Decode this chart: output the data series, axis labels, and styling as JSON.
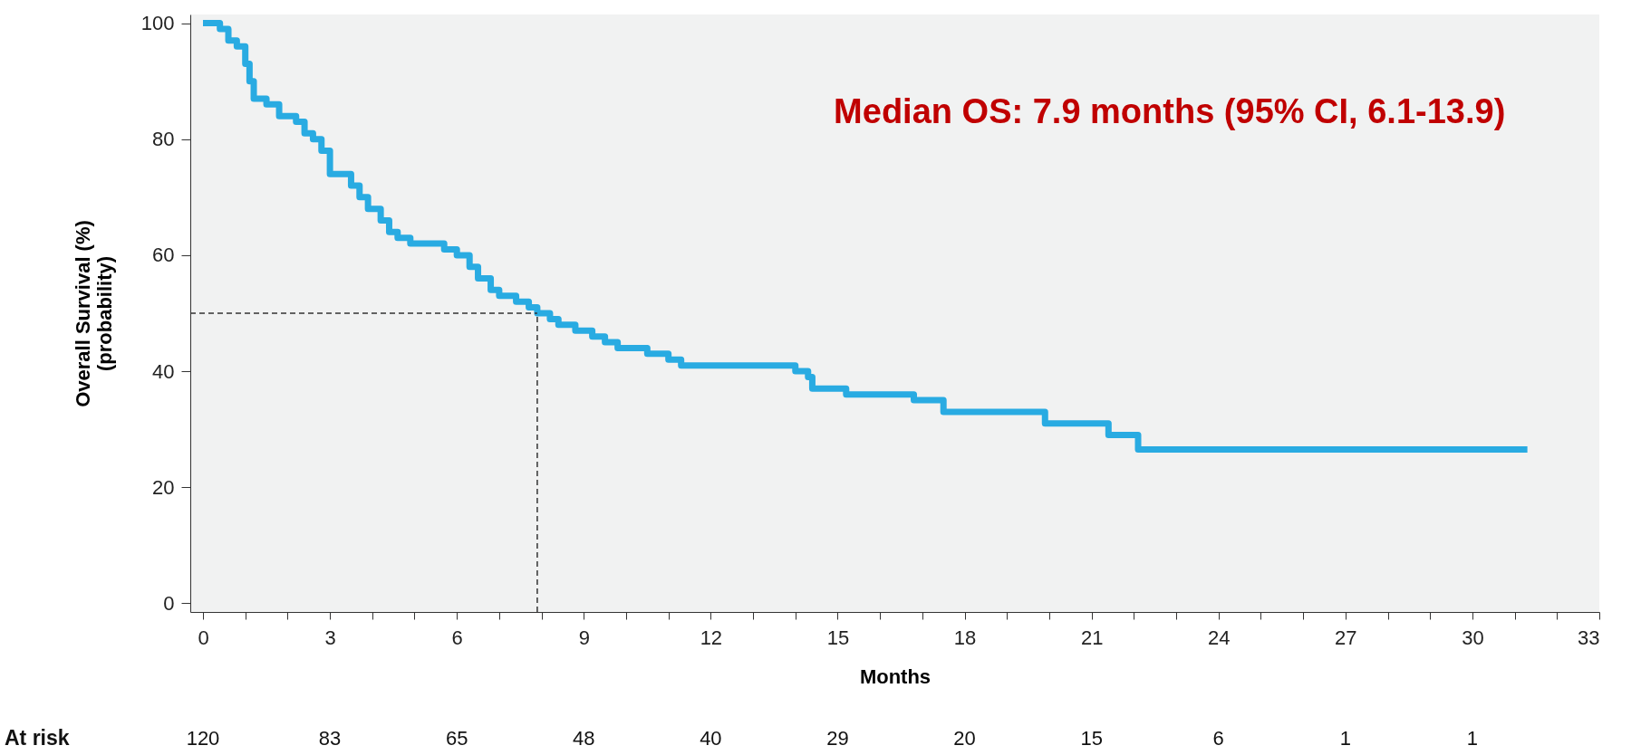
{
  "chart_data": {
    "type": "step",
    "xlabel": "Months",
    "ylabel": "Overall Survival  (%)\n(probability)",
    "x": [
      0,
      0.4,
      0.6,
      0.8,
      1.0,
      1.1,
      1.2,
      1.5,
      1.8,
      2.2,
      2.4,
      2.6,
      2.8,
      3.0,
      3.5,
      3.7,
      3.9,
      4.2,
      4.4,
      4.6,
      4.9,
      5.7,
      6.0,
      6.3,
      6.5,
      6.8,
      7.0,
      7.4,
      7.7,
      7.9,
      8.2,
      8.4,
      8.8,
      9.2,
      9.5,
      9.8,
      10.5,
      11.0,
      11.3,
      14.0,
      14.3,
      14.4,
      15.2,
      16.8,
      17.5,
      19.9,
      21.4,
      22.1,
      31.3
    ],
    "series": [
      {
        "color": "#29abe2",
        "values": [
          100,
          99,
          97,
          96,
          93,
          90,
          87,
          86,
          84,
          83,
          81,
          80,
          78,
          74,
          72,
          70,
          68,
          66,
          64,
          63,
          62,
          61,
          60,
          58,
          56,
          54,
          53,
          52,
          51,
          50,
          49,
          48,
          47,
          46,
          45,
          44,
          43,
          42,
          41,
          40,
          39,
          37,
          36,
          35,
          33,
          31,
          29,
          26.5,
          26.5
        ]
      }
    ],
    "xlim": [
      -0.3,
      33
    ],
    "ylim": [
      -1.5,
      101.5
    ],
    "xticks": [
      0,
      {
        "value": 1,
        "label": null
      },
      {
        "value": 2,
        "label": null
      },
      3,
      {
        "value": 4,
        "label": null
      },
      {
        "value": 5,
        "label": null
      },
      6,
      {
        "value": 7,
        "label": null
      },
      {
        "value": 8,
        "label": null
      },
      9,
      {
        "value": 10,
        "label": null
      },
      {
        "value": 11,
        "label": null
      },
      12,
      {
        "value": 13,
        "label": null
      },
      {
        "value": 14,
        "label": null
      },
      15,
      {
        "value": 16,
        "label": null
      },
      {
        "value": 17,
        "label": null
      },
      18,
      {
        "value": 19,
        "label": null
      },
      {
        "value": 20,
        "label": null
      },
      21,
      {
        "value": 22,
        "label": null
      },
      {
        "value": 23,
        "label": null
      },
      24,
      {
        "value": 25,
        "label": null
      },
      {
        "value": 26,
        "label": null
      },
      27,
      {
        "value": 28,
        "label": null
      },
      {
        "value": 29,
        "label": null
      },
      30,
      {
        "value": 31,
        "label": null
      },
      {
        "value": 32,
        "label": null
      },
      33
    ],
    "yticks": [
      0,
      20,
      40,
      60,
      80,
      100
    ],
    "ref_lines": [
      {
        "axis": "y",
        "value": 50,
        "line_style": "dashed",
        "color": "#333333"
      },
      {
        "axis": "x",
        "value": 7.9,
        "line_style": "dashed",
        "color": "#333333"
      }
    ],
    "annotations": [
      "Median OS: 7.9 months (95% CI, 6.1-13.9)",
      "At risk",
      "120",
      "83",
      "65",
      "48",
      "40",
      "29",
      "20",
      "15",
      "6",
      "1",
      "1"
    ]
  }
}
